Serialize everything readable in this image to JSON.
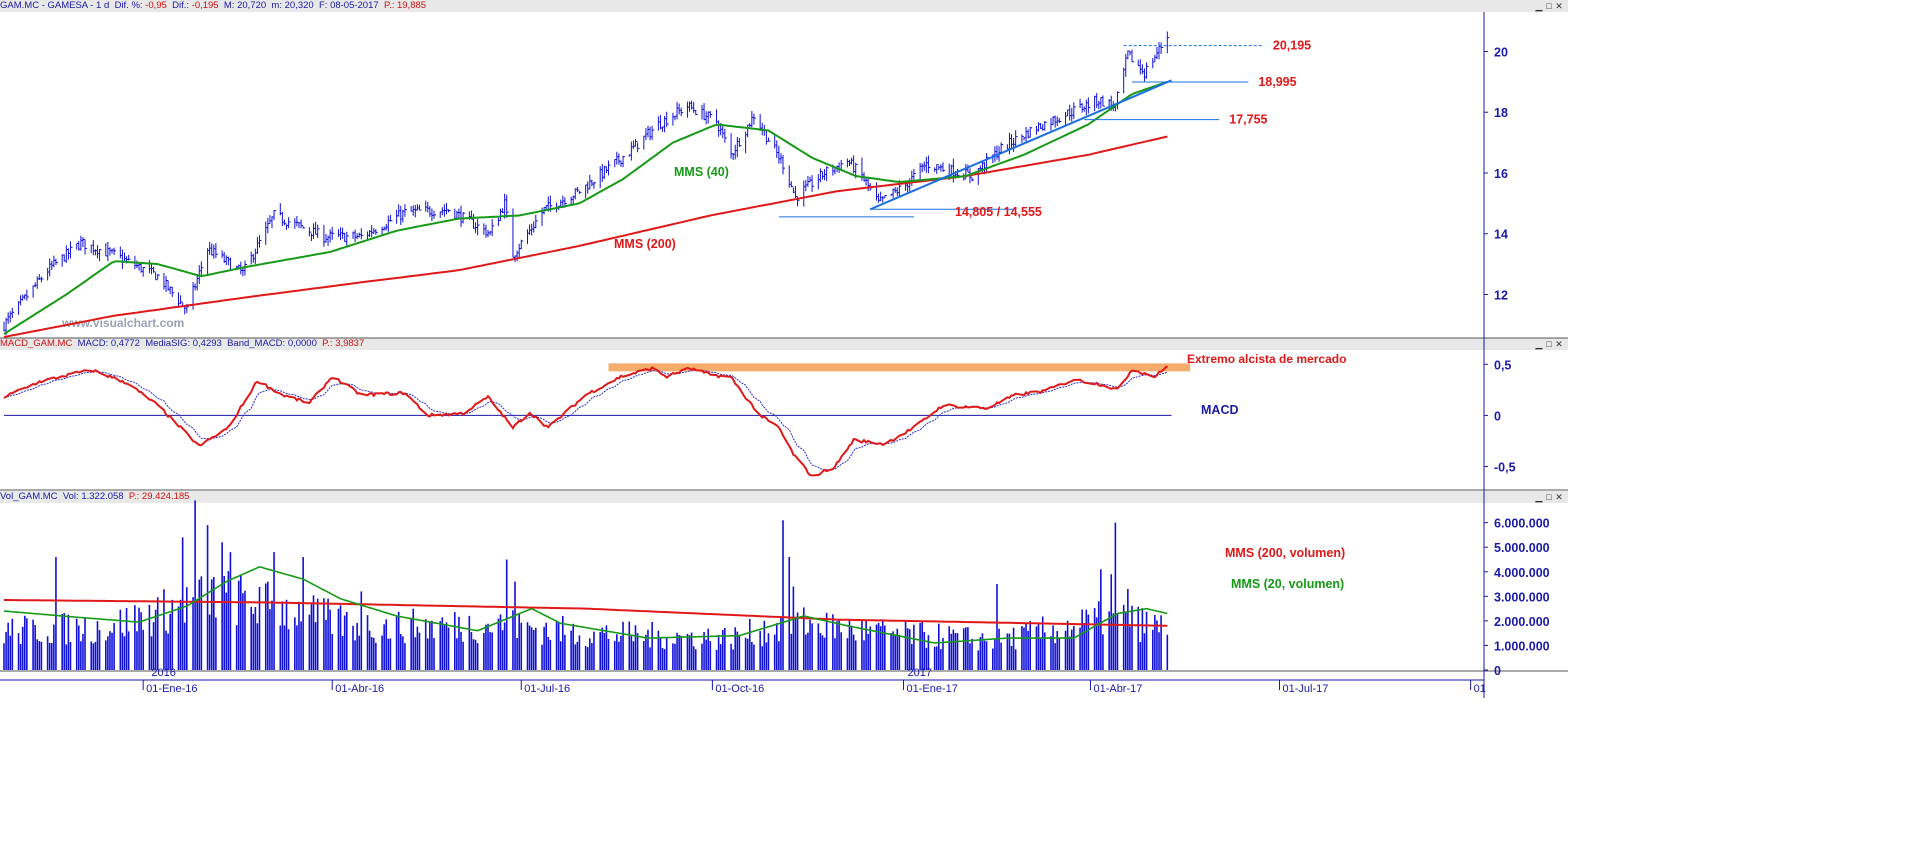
{
  "header_price": {
    "symbol": "GAM.MC - GAMESA - 1 d",
    "dif_pct_label": "Dif. %:",
    "dif_pct": "-0,95",
    "dif_label": "Dif.:",
    "dif": "-0,195",
    "max_label": "M:",
    "max": "20,720",
    "min_label": "m:",
    "min": "20,320",
    "date_label": "F:",
    "date": "08-05-2017",
    "p_label": "P.:",
    "p": "19,885"
  },
  "header_macd": {
    "symbol": "MACD_GAM.MC",
    "macd_label": "MACD:",
    "macd": "0,4772",
    "sig_label": "MediaSIG:",
    "sig": "0,4293",
    "band_label": "Band_MACD:",
    "band": "0,0000",
    "p_label": "P.:",
    "p": "3,9837"
  },
  "header_vol": {
    "symbol": "Vol_GAM.MC",
    "vol_label": "Vol:",
    "vol": "1.322.058",
    "p_label": "P.:",
    "p": "29.424.185"
  },
  "window_buttons": [
    "▁",
    "□",
    "✕"
  ],
  "watermark": "www.visualchart.com",
  "colors": {
    "candles": "#1010d8",
    "mms40": "#169a16",
    "mms200": "#e01818",
    "macd": "#e01818",
    "signal": "#3030d0",
    "axis": "#1a1aa8",
    "levels": "#1a70e0",
    "band": "#f5a35a",
    "volume": "#1010d8"
  },
  "chart_data": [
    {
      "type": "candlestick",
      "name": "price",
      "x_range": [
        "2015-10-26",
        "2017-10-06"
      ],
      "ylim": [
        10.6,
        21.3
      ],
      "y_ticks": [
        12,
        14,
        16,
        18,
        20
      ],
      "y_tick_labels": [
        "12",
        "14",
        "16",
        "18",
        "20"
      ],
      "grid": false,
      "anchors": [
        [
          "2015-10-26",
          11.0
        ],
        [
          "2015-11-16",
          12.8
        ],
        [
          "2015-12-02",
          13.7
        ],
        [
          "2015-12-18",
          13.3
        ],
        [
          "2016-01-08",
          12.6
        ],
        [
          "2016-01-22",
          11.5
        ],
        [
          "2016-02-01",
          13.5
        ],
        [
          "2016-02-18",
          12.7
        ],
        [
          "2016-03-04",
          14.6
        ],
        [
          "2016-03-28",
          13.9
        ],
        [
          "2016-04-15",
          13.9
        ],
        [
          "2016-05-06",
          14.7
        ],
        [
          "2016-05-27",
          14.8
        ],
        [
          "2016-06-16",
          14.0
        ],
        [
          "2016-06-23",
          15.0
        ],
        [
          "2016-06-27",
          13.3
        ],
        [
          "2016-07-12",
          14.8
        ],
        [
          "2016-07-29",
          15.4
        ],
        [
          "2016-08-22",
          16.7
        ],
        [
          "2016-09-05",
          17.6
        ],
        [
          "2016-09-19",
          18.2
        ],
        [
          "2016-10-03",
          17.7
        ],
        [
          "2016-10-10",
          16.6
        ],
        [
          "2016-10-21",
          17.9
        ],
        [
          "2016-11-04",
          16.3
        ],
        [
          "2016-11-10",
          15.2
        ],
        [
          "2016-11-24",
          16.0
        ],
        [
          "2016-12-05",
          16.4
        ],
        [
          "2016-12-12",
          15.9
        ],
        [
          "2016-12-20",
          15.0
        ],
        [
          "2017-01-02",
          15.6
        ],
        [
          "2017-01-12",
          16.3
        ],
        [
          "2017-02-03",
          15.9
        ],
        [
          "2017-02-17",
          16.8
        ],
        [
          "2017-03-06",
          17.5
        ],
        [
          "2017-03-22",
          18.0
        ],
        [
          "2017-04-05",
          18.4
        ],
        [
          "2017-04-13",
          18.2
        ],
        [
          "2017-04-19",
          19.9
        ],
        [
          "2017-04-27",
          19.3
        ],
        [
          "2017-05-08",
          20.5
        ]
      ],
      "mms40": [
        [
          "2015-10-26",
          10.7
        ],
        [
          "2015-11-25",
          12.0
        ],
        [
          "2015-12-18",
          13.1
        ],
        [
          "2016-01-08",
          13.0
        ],
        [
          "2016-01-29",
          12.6
        ],
        [
          "2016-02-19",
          12.9
        ],
        [
          "2016-03-31",
          13.4
        ],
        [
          "2016-05-02",
          14.1
        ],
        [
          "2016-06-01",
          14.5
        ],
        [
          "2016-06-30",
          14.6
        ],
        [
          "2016-07-29",
          15.0
        ],
        [
          "2016-08-19",
          15.8
        ],
        [
          "2016-09-12",
          17.0
        ],
        [
          "2016-10-03",
          17.6
        ],
        [
          "2016-10-28",
          17.4
        ],
        [
          "2016-11-18",
          16.5
        ],
        [
          "2016-12-09",
          15.9
        ],
        [
          "2016-12-30",
          15.7
        ],
        [
          "2017-01-31",
          15.9
        ],
        [
          "2017-02-28",
          16.6
        ],
        [
          "2017-03-31",
          17.6
        ],
        [
          "2017-04-21",
          18.6
        ],
        [
          "2017-05-08",
          19.0
        ]
      ],
      "mms200": [
        [
          "2015-10-26",
          10.6
        ],
        [
          "2015-12-18",
          11.3
        ],
        [
          "2016-02-19",
          11.9
        ],
        [
          "2016-04-15",
          12.4
        ],
        [
          "2016-06-01",
          12.8
        ],
        [
          "2016-07-29",
          13.6
        ],
        [
          "2016-09-30",
          14.6
        ],
        [
          "2016-11-30",
          15.4
        ],
        [
          "2017-01-31",
          15.9
        ],
        [
          "2017-03-31",
          16.6
        ],
        [
          "2017-05-08",
          17.2
        ]
      ],
      "support_lines": [
        {
          "label": "20,195",
          "from": "2017-04-17",
          "to": "2017-06-23",
          "y": 20.195,
          "dashed": true
        },
        {
          "label": "18,995",
          "from": "2017-04-21",
          "to": "2017-06-16",
          "y": 18.995,
          "dashed": false
        },
        {
          "label": "17,755",
          "from": "2017-03-29",
          "to": "2017-06-02",
          "y": 17.755,
          "dashed": false
        },
        {
          "label": "",
          "from": "2016-12-16",
          "to": "2017-02-24",
          "y": 14.805,
          "dashed": false
        },
        {
          "label": "",
          "from": "2016-11-02",
          "to": "2017-01-06",
          "y": 14.555,
          "dashed": false
        }
      ],
      "trend_line": {
        "from": [
          "2016-12-16",
          14.805
        ],
        "to": [
          "2017-05-10",
          19.05
        ]
      },
      "annotations": {
        "mms40": "MMS (40)",
        "mms200": "MMS (200)",
        "double_low": "14,805 / 14,555"
      }
    },
    {
      "type": "line",
      "name": "macd",
      "ylim": [
        -0.72,
        0.64
      ],
      "y_ticks": [
        0.5,
        0,
        -0.5
      ],
      "y_tick_labels": [
        "0,5",
        "0",
        "-0,5"
      ],
      "zero_line_label": "MACD",
      "extreme_label": "Extremo alcista de mercado",
      "extreme_band": {
        "from": "2016-08-12",
        "to": "2017-05-19",
        "y": 0.47
      },
      "anchors": [
        [
          "2015-10-26",
          0.18
        ],
        [
          "2015-11-12",
          0.33
        ],
        [
          "2015-12-01",
          0.42
        ],
        [
          "2015-12-08",
          0.44
        ],
        [
          "2015-12-24",
          0.32
        ],
        [
          "2016-01-08",
          0.1
        ],
        [
          "2016-01-20",
          -0.14
        ],
        [
          "2016-01-28",
          -0.3
        ],
        [
          "2016-02-11",
          -0.12
        ],
        [
          "2016-02-25",
          0.34
        ],
        [
          "2016-03-08",
          0.2
        ],
        [
          "2016-03-21",
          0.12
        ],
        [
          "2016-04-01",
          0.38
        ],
        [
          "2016-04-15",
          0.2
        ],
        [
          "2016-05-06",
          0.22
        ],
        [
          "2016-05-17",
          0.0
        ],
        [
          "2016-06-03",
          0.02
        ],
        [
          "2016-06-15",
          0.18
        ],
        [
          "2016-06-27",
          -0.12
        ],
        [
          "2016-07-05",
          0.03
        ],
        [
          "2016-07-14",
          -0.12
        ],
        [
          "2016-08-01",
          0.2
        ],
        [
          "2016-08-18",
          0.38
        ],
        [
          "2016-09-02",
          0.46
        ],
        [
          "2016-09-09",
          0.38
        ],
        [
          "2016-09-20",
          0.46
        ],
        [
          "2016-09-30",
          0.4
        ],
        [
          "2016-10-10",
          0.37
        ],
        [
          "2016-10-17",
          0.18
        ],
        [
          "2016-10-24",
          0.0
        ],
        [
          "2016-11-02",
          -0.12
        ],
        [
          "2016-11-09",
          -0.38
        ],
        [
          "2016-11-18",
          -0.6
        ],
        [
          "2016-11-29",
          -0.5
        ],
        [
          "2016-12-08",
          -0.24
        ],
        [
          "2016-12-23",
          -0.28
        ],
        [
          "2017-01-06",
          -0.12
        ],
        [
          "2017-01-20",
          0.1
        ],
        [
          "2017-02-10",
          0.07
        ],
        [
          "2017-02-24",
          0.2
        ],
        [
          "2017-03-10",
          0.24
        ],
        [
          "2017-03-24",
          0.35
        ],
        [
          "2017-04-07",
          0.3
        ],
        [
          "2017-04-14",
          0.25
        ],
        [
          "2017-04-21",
          0.45
        ],
        [
          "2017-05-02",
          0.38
        ],
        [
          "2017-05-08",
          0.48
        ]
      ]
    },
    {
      "type": "bar",
      "name": "volume",
      "ylim": [
        0,
        6800000
      ],
      "y_ticks": [
        0,
        1000000,
        2000000,
        3000000,
        4000000,
        5000000,
        6000000
      ],
      "y_tick_labels": [
        "0",
        "1.000.000",
        "2.000.000",
        "3.000.000",
        "4.000.000",
        "5.000.000",
        "6.000.000"
      ],
      "anchors": [
        [
          "2015-10-26",
          1700000
        ],
        [
          "2015-12-15",
          1900000
        ],
        [
          "2016-01-12",
          2600000
        ],
        [
          "2016-02-05",
          3300000
        ],
        [
          "2016-03-04",
          2800000
        ],
        [
          "2016-04-15",
          1900000
        ],
        [
          "2016-06-24",
          2000000
        ],
        [
          "2016-08-01",
          1600000
        ],
        [
          "2016-10-10",
          1400000
        ],
        [
          "2016-11-10",
          2100000
        ],
        [
          "2016-12-15",
          1700000
        ],
        [
          "2017-02-15",
          1300000
        ],
        [
          "2017-04-13",
          2300000
        ],
        [
          "2017-05-08",
          1800000
        ]
      ],
      "spikes": [
        [
          "2015-11-20",
          4600000
        ],
        [
          "2016-01-26",
          6900000
        ],
        [
          "2016-02-01",
          5900000
        ],
        [
          "2016-02-08",
          5200000
        ],
        [
          "2016-02-12",
          4800000
        ],
        [
          "2016-01-20",
          5400000
        ],
        [
          "2016-03-04",
          4800000
        ],
        [
          "2016-03-18",
          4600000
        ],
        [
          "2016-04-15",
          3200000
        ],
        [
          "2016-06-24",
          4500000
        ],
        [
          "2016-06-28",
          3600000
        ],
        [
          "2016-11-04",
          6100000
        ],
        [
          "2016-11-07",
          4600000
        ],
        [
          "2016-11-09",
          3400000
        ],
        [
          "2017-02-15",
          3500000
        ],
        [
          "2017-04-06",
          4100000
        ],
        [
          "2017-04-11",
          3900000
        ],
        [
          "2017-04-13",
          6000000
        ],
        [
          "2017-04-19",
          3300000
        ]
      ],
      "mms200_vol": [
        [
          "2015-10-26",
          2850000
        ],
        [
          "2016-03-01",
          2750000
        ],
        [
          "2016-08-01",
          2500000
        ],
        [
          "2016-12-01",
          2050000
        ],
        [
          "2017-05-08",
          1800000
        ]
      ],
      "mms20_vol": [
        [
          "2015-10-26",
          2400000
        ],
        [
          "2015-11-30",
          2150000
        ],
        [
          "2015-12-30",
          1950000
        ],
        [
          "2016-01-22",
          2600000
        ],
        [
          "2016-02-10",
          3600000
        ],
        [
          "2016-02-26",
          4200000
        ],
        [
          "2016-03-18",
          3700000
        ],
        [
          "2016-04-05",
          2900000
        ],
        [
          "2016-05-02",
          2200000
        ],
        [
          "2016-06-10",
          1600000
        ],
        [
          "2016-07-06",
          2500000
        ],
        [
          "2016-07-20",
          1900000
        ],
        [
          "2016-08-31",
          1300000
        ],
        [
          "2016-10-14",
          1400000
        ],
        [
          "2016-11-14",
          2200000
        ],
        [
          "2016-12-05",
          1800000
        ],
        [
          "2017-01-16",
          1100000
        ],
        [
          "2017-02-20",
          1300000
        ],
        [
          "2017-03-24",
          1300000
        ],
        [
          "2017-04-14",
          2300000
        ],
        [
          "2017-04-28",
          2500000
        ],
        [
          "2017-05-08",
          2300000
        ]
      ],
      "legend": {
        "mms200": "MMS (200, volumen)",
        "mms20": "MMS (20, volumen)"
      }
    }
  ],
  "x_axis": {
    "year_labels": [
      {
        "date": "2016-01-04",
        "label": "2016"
      },
      {
        "date": "2017-01-02",
        "label": "2017"
      }
    ],
    "ticks": [
      {
        "date": "2016-01-01",
        "label": "01-Ene-16"
      },
      {
        "date": "2016-04-01",
        "label": "01-Abr-16"
      },
      {
        "date": "2016-07-01",
        "label": "01-Jul-16"
      },
      {
        "date": "2016-10-01",
        "label": "01-Oct-16"
      },
      {
        "date": "2017-01-01",
        "label": "01-Ene-17"
      },
      {
        "date": "2017-04-01",
        "label": "01-Abr-17"
      },
      {
        "date": "2017-07-01",
        "label": "01-Jul-17"
      },
      {
        "date": "2017-10-01",
        "label": "01"
      }
    ]
  }
}
